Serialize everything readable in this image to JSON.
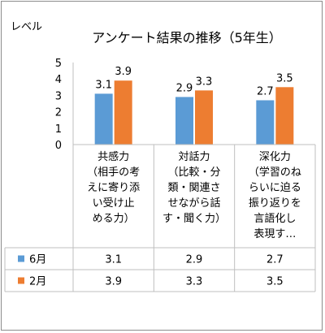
{
  "chart_data": {
    "type": "bar",
    "title": "アンケート結果の推移（5年生）",
    "ylabel": "レベル",
    "xlabel": "",
    "ylim": [
      0,
      5
    ],
    "yticks": [
      0,
      1,
      2,
      3,
      4,
      5
    ],
    "grid": false,
    "legend": "table-left",
    "categories": [
      [
        "共感力",
        "（相手の考",
        "えに寄り添",
        "い受け止",
        "める力）"
      ],
      [
        "対話力",
        "（比較・分",
        "類・関連さ",
        "せながら話",
        "す・聞く力）"
      ],
      [
        "深化力",
        "（学習のね",
        "らいに迫る",
        "振り返りを",
        "言語化し",
        "表現す…"
      ]
    ],
    "series": [
      {
        "name": "6月",
        "values": [
          3.1,
          2.9,
          2.7
        ],
        "labels": [
          "3.1",
          "2.9",
          "2.7"
        ],
        "color": "#5b9bd5"
      },
      {
        "name": "2月",
        "values": [
          3.9,
          3.3,
          3.5
        ],
        "labels": [
          "3.9",
          "3.3",
          "3.5"
        ],
        "color": "#ed7d31"
      }
    ]
  }
}
